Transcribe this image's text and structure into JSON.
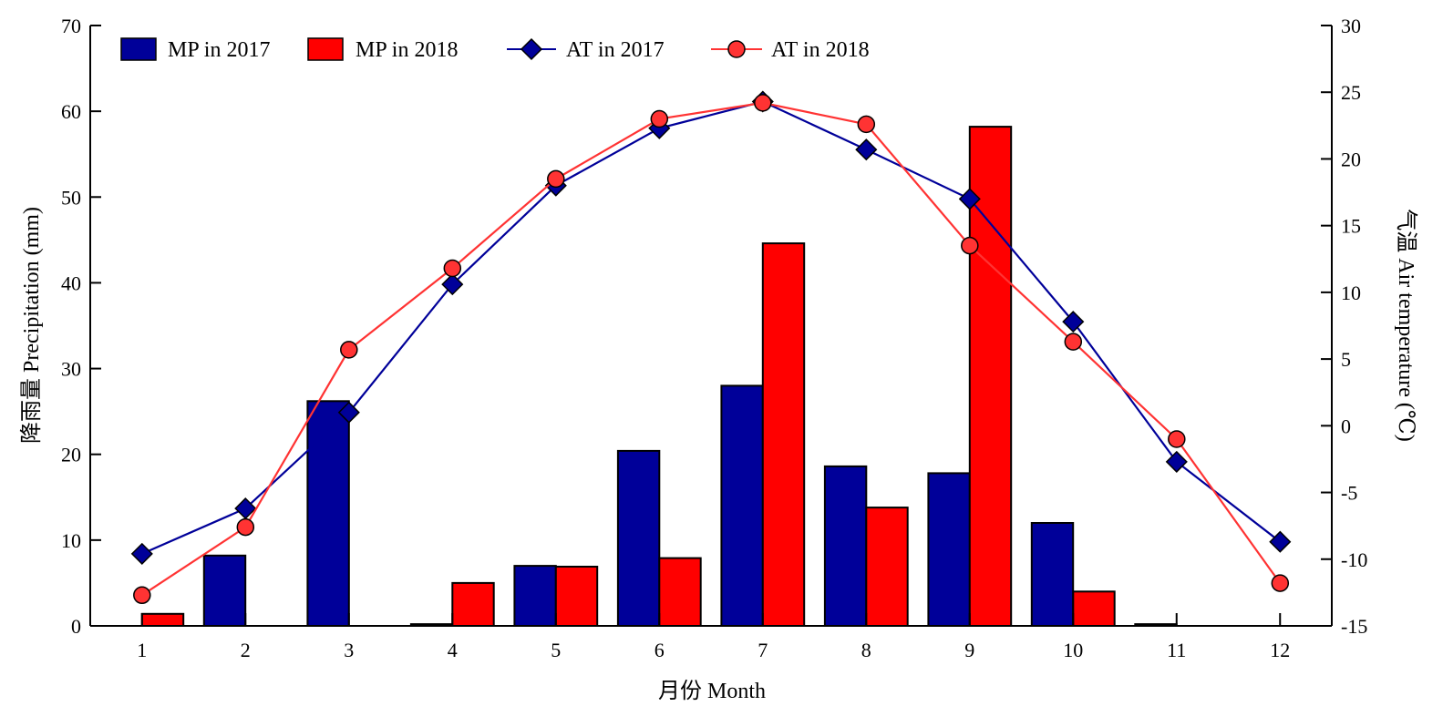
{
  "chart_data": {
    "type": "bar",
    "categories": [
      "1",
      "2",
      "3",
      "4",
      "5",
      "6",
      "7",
      "8",
      "9",
      "10",
      "11",
      "12"
    ],
    "xlabel": "月份 Month",
    "ylabel_left": "降雨量 Precipitation (mm)",
    "ylabel_right": "气温 Air temperature (℃)",
    "ylim_left": [
      0,
      70
    ],
    "ylim_right": [
      -15,
      30
    ],
    "yticks_left": [
      "0",
      "10",
      "20",
      "30",
      "40",
      "50",
      "60",
      "70"
    ],
    "yticks_right": [
      "-15",
      "-10",
      "-5",
      "0",
      "5",
      "10",
      "15",
      "20",
      "25",
      "30"
    ],
    "grid": false,
    "legend_position": "top",
    "series": [
      {
        "name": "MP in 2017",
        "kind": "bar",
        "axis": "left",
        "color": "#000099",
        "values": [
          0,
          8.2,
          26.2,
          0.2,
          7.0,
          20.4,
          28.0,
          18.6,
          17.8,
          12.0,
          0.2,
          0
        ]
      },
      {
        "name": "MP in 2018",
        "kind": "bar",
        "axis": "left",
        "color": "#ff0000",
        "values": [
          1.4,
          0,
          0,
          5.0,
          6.9,
          7.9,
          44.6,
          13.8,
          58.2,
          4.0,
          0,
          0
        ]
      },
      {
        "name": "AT in 2017",
        "kind": "line",
        "marker": "diamond",
        "axis": "right",
        "color": "#000099",
        "values": [
          -9.6,
          -6.2,
          1.0,
          10.6,
          18.0,
          22.3,
          24.3,
          20.7,
          17.0,
          7.8,
          -2.7,
          -8.7
        ]
      },
      {
        "name": "AT in 2018",
        "kind": "line",
        "marker": "circle",
        "axis": "right",
        "color": "#ff3333",
        "values": [
          -12.7,
          -7.6,
          5.7,
          11.8,
          18.5,
          23.0,
          24.2,
          22.6,
          13.5,
          6.3,
          -1.0,
          -11.8
        ]
      }
    ]
  }
}
